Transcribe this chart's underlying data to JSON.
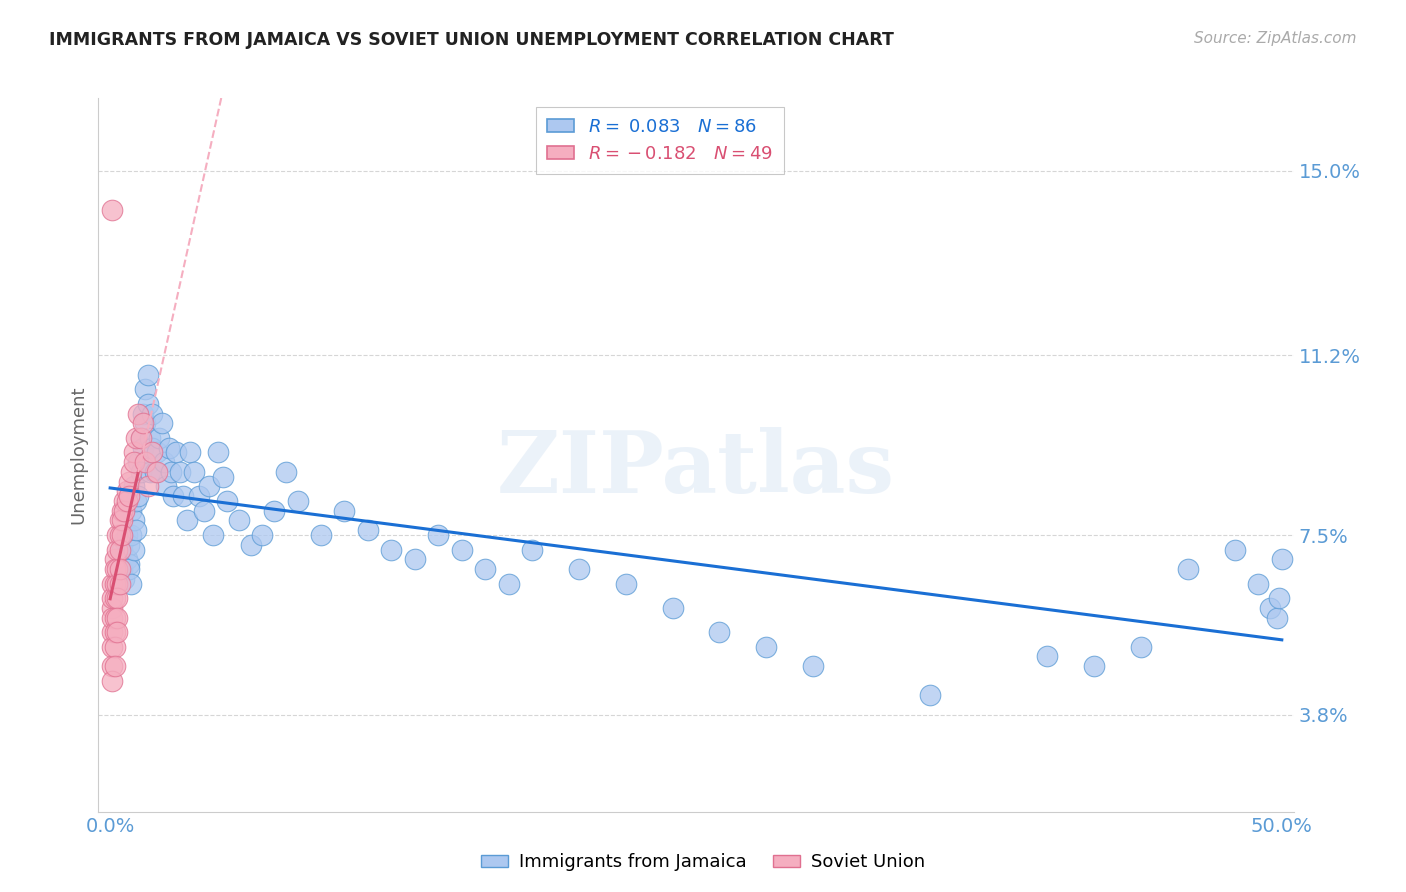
{
  "title": "IMMIGRANTS FROM JAMAICA VS SOVIET UNION UNEMPLOYMENT CORRELATION CHART",
  "source": "Source: ZipAtlas.com",
  "ylabel": "Unemployment",
  "ytick_labels": [
    "3.8%",
    "7.5%",
    "11.2%",
    "15.0%"
  ],
  "ytick_values": [
    0.038,
    0.075,
    0.112,
    0.15
  ],
  "xtick_labels": [
    "0.0%",
    "",
    "",
    "",
    "",
    "50.0%"
  ],
  "xtick_values": [
    0.0,
    0.1,
    0.2,
    0.3,
    0.4,
    0.5
  ],
  "xlim": [
    -0.005,
    0.505
  ],
  "ylim": [
    0.018,
    0.165
  ],
  "legend_r_jamaica": "R = 0.083",
  "legend_n_jamaica": "N = 86",
  "legend_r_soviet": "R = -0.182",
  "legend_n_soviet": "N = 49",
  "color_jamaica": "#adc8f0",
  "color_soviet": "#f5aec0",
  "edge_jamaica": "#5b9bd5",
  "edge_soviet": "#e07090",
  "trendline_jamaica_color": "#1a6fd4",
  "trendline_soviet_solid_color": "#d94f72",
  "trendline_soviet_dashed_color": "#f5aec0",
  "watermark": "ZIPatlas",
  "background_color": "#ffffff",
  "grid_color": "#cccccc",
  "title_color": "#222222",
  "source_color": "#aaaaaa",
  "ylabel_color": "#666666",
  "tick_color_right": "#5b9bd5",
  "tick_color_bottom": "#5b9bd5",
  "jamaica_x": [
    0.005,
    0.005,
    0.006,
    0.006,
    0.007,
    0.007,
    0.008,
    0.008,
    0.008,
    0.009,
    0.009,
    0.009,
    0.01,
    0.01,
    0.01,
    0.011,
    0.011,
    0.012,
    0.012,
    0.013,
    0.013,
    0.014,
    0.014,
    0.015,
    0.015,
    0.016,
    0.016,
    0.017,
    0.017,
    0.018,
    0.018,
    0.019,
    0.02,
    0.021,
    0.022,
    0.023,
    0.024,
    0.025,
    0.026,
    0.027,
    0.028,
    0.03,
    0.031,
    0.033,
    0.034,
    0.036,
    0.038,
    0.04,
    0.042,
    0.044,
    0.046,
    0.048,
    0.05,
    0.055,
    0.06,
    0.065,
    0.07,
    0.075,
    0.08,
    0.09,
    0.1,
    0.11,
    0.12,
    0.13,
    0.14,
    0.15,
    0.16,
    0.17,
    0.18,
    0.2,
    0.22,
    0.24,
    0.26,
    0.28,
    0.3,
    0.35,
    0.4,
    0.42,
    0.44,
    0.46,
    0.48,
    0.49,
    0.495,
    0.498,
    0.499,
    0.5
  ],
  "jamaica_y": [
    0.072,
    0.068,
    0.074,
    0.066,
    0.075,
    0.07,
    0.073,
    0.069,
    0.068,
    0.08,
    0.075,
    0.065,
    0.085,
    0.078,
    0.072,
    0.082,
    0.076,
    0.09,
    0.083,
    0.095,
    0.088,
    0.1,
    0.093,
    0.105,
    0.098,
    0.108,
    0.102,
    0.095,
    0.088,
    0.1,
    0.093,
    0.088,
    0.092,
    0.095,
    0.098,
    0.09,
    0.085,
    0.093,
    0.088,
    0.083,
    0.092,
    0.088,
    0.083,
    0.078,
    0.092,
    0.088,
    0.083,
    0.08,
    0.085,
    0.075,
    0.092,
    0.087,
    0.082,
    0.078,
    0.073,
    0.075,
    0.08,
    0.088,
    0.082,
    0.075,
    0.08,
    0.076,
    0.072,
    0.07,
    0.075,
    0.072,
    0.068,
    0.065,
    0.072,
    0.068,
    0.065,
    0.06,
    0.055,
    0.052,
    0.048,
    0.042,
    0.05,
    0.048,
    0.052,
    0.068,
    0.072,
    0.065,
    0.06,
    0.058,
    0.062,
    0.07
  ],
  "soviet_x": [
    0.001,
    0.001,
    0.001,
    0.001,
    0.001,
    0.001,
    0.001,
    0.001,
    0.001,
    0.002,
    0.002,
    0.002,
    0.002,
    0.002,
    0.002,
    0.002,
    0.002,
    0.003,
    0.003,
    0.003,
    0.003,
    0.003,
    0.003,
    0.003,
    0.004,
    0.004,
    0.004,
    0.004,
    0.004,
    0.005,
    0.005,
    0.005,
    0.006,
    0.006,
    0.007,
    0.007,
    0.008,
    0.008,
    0.009,
    0.01,
    0.01,
    0.011,
    0.012,
    0.013,
    0.014,
    0.015,
    0.016,
    0.018,
    0.02
  ],
  "soviet_y": [
    0.055,
    0.06,
    0.065,
    0.062,
    0.058,
    0.052,
    0.048,
    0.045,
    0.142,
    0.07,
    0.068,
    0.065,
    0.062,
    0.058,
    0.055,
    0.052,
    0.048,
    0.075,
    0.072,
    0.068,
    0.065,
    0.062,
    0.058,
    0.055,
    0.078,
    0.075,
    0.072,
    0.068,
    0.065,
    0.08,
    0.078,
    0.075,
    0.082,
    0.08,
    0.084,
    0.082,
    0.086,
    0.083,
    0.088,
    0.092,
    0.09,
    0.095,
    0.1,
    0.095,
    0.098,
    0.09,
    0.085,
    0.092,
    0.088
  ]
}
